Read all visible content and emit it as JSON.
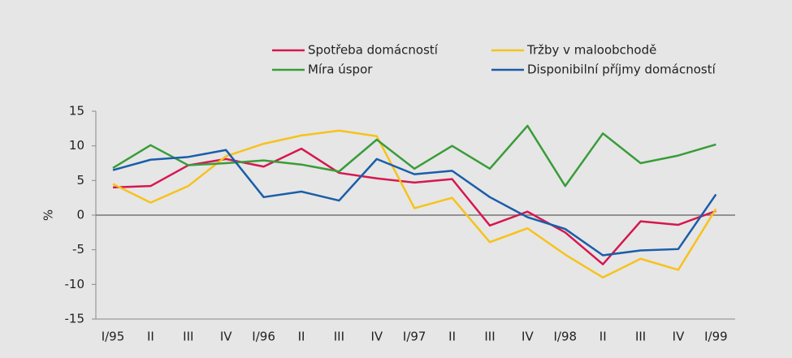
{
  "chart_data": {
    "type": "line",
    "categories": [
      "I/95",
      "II",
      "III",
      "IV",
      "I/96",
      "II",
      "III",
      "IV",
      "I/97",
      "II",
      "III",
      "IV",
      "I/98",
      "II",
      "III",
      "IV",
      "I/99"
    ],
    "series": [
      {
        "name": "Spotřeba domácností",
        "color": "#d6174f",
        "values": [
          4.0,
          4.2,
          7.2,
          8.1,
          7.0,
          9.6,
          6.1,
          5.3,
          4.7,
          5.2,
          -1.5,
          0.5,
          -2.5,
          -7.1,
          -0.9,
          -1.4,
          0.6
        ]
      },
      {
        "name": "Tržby v maloobchodě",
        "color": "#f7c21b",
        "values": [
          4.5,
          1.8,
          4.2,
          8.5,
          10.3,
          11.5,
          12.2,
          11.4,
          1.0,
          2.5,
          -3.9,
          -1.9,
          -5.7,
          -9.0,
          -6.3,
          -7.9,
          0.9
        ]
      },
      {
        "name": "Míra úspor",
        "color": "#3a9c3a",
        "values": [
          6.8,
          10.1,
          7.2,
          7.5,
          7.9,
          7.3,
          6.3,
          10.9,
          6.7,
          10.0,
          6.7,
          12.9,
          4.2,
          11.8,
          7.5,
          8.6,
          10.2
        ]
      },
      {
        "name": "Disponibilní příjmy domácností",
        "color": "#1a5ea8",
        "values": [
          6.5,
          8.0,
          8.4,
          9.4,
          2.6,
          3.4,
          2.1,
          8.1,
          5.9,
          6.4,
          2.6,
          -0.3,
          -2.0,
          -5.8,
          -5.1,
          -4.9,
          3.0
        ]
      }
    ],
    "ylabel": "%",
    "ylim": [
      -15,
      15
    ],
    "yticks": [
      -15,
      -10,
      -5,
      0,
      5,
      10,
      15
    ]
  }
}
